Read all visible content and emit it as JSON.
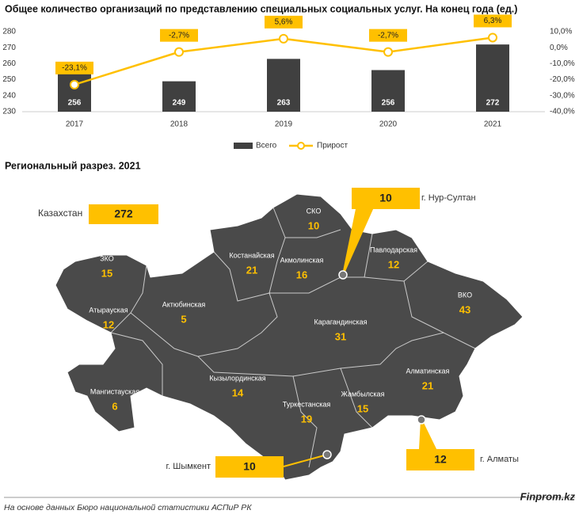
{
  "chart_data": {
    "type": "bar+line",
    "title": "Общее количество организаций по представлению специальных социальных услуг. На конец года (ед.)",
    "categories": [
      "2017",
      "2018",
      "2019",
      "2020",
      "2021"
    ],
    "series": [
      {
        "name": "Всего",
        "type": "bar",
        "color": "#404040",
        "values": [
          256,
          249,
          263,
          256,
          272
        ]
      },
      {
        "name": "Прирост",
        "type": "line",
        "axis": "y2",
        "color": "#ffc000",
        "values": [
          -23.1,
          -2.7,
          5.6,
          -2.7,
          6.3
        ],
        "value_labels": [
          "-23,1%",
          "-2,7%",
          "5,6%",
          "-2,7%",
          "6,3%"
        ]
      }
    ],
    "ylim": [
      230,
      280
    ],
    "yticks": [
      230,
      240,
      250,
      260,
      270,
      280
    ],
    "y2lim": [
      -40,
      10
    ],
    "y2ticks": [
      {
        "value": -40,
        "label": "-40,0%"
      },
      {
        "value": -30,
        "label": "-30,0%"
      },
      {
        "value": -20,
        "label": "-20,0%"
      },
      {
        "value": -10,
        "label": "-10,0%"
      },
      {
        "value": 0,
        "label": "0,0%"
      },
      {
        "value": 10,
        "label": "10,0%"
      }
    ],
    "grid": false,
    "legend": "bottom"
  },
  "map": {
    "title": "Региональный разрез. 2021",
    "total": {
      "label": "Казахстан",
      "value": 272
    },
    "regions": [
      {
        "name": "ЗКО",
        "value": 15
      },
      {
        "name": "Атырауская",
        "value": 12
      },
      {
        "name": "Актюбинская",
        "value": 5
      },
      {
        "name": "Мангистауская",
        "value": 6
      },
      {
        "name": "Кызылординская",
        "value": 14
      },
      {
        "name": "Туркестанская",
        "value": 19
      },
      {
        "name": "Жамбылская",
        "value": 15
      },
      {
        "name": "Алматинская",
        "value": 21
      },
      {
        "name": "Карагандинская",
        "value": 31
      },
      {
        "name": "Костанайская",
        "value": 21
      },
      {
        "name": "Акмолинская",
        "value": 16
      },
      {
        "name": "СКО",
        "value": 10
      },
      {
        "name": "Павлодарская",
        "value": 12
      },
      {
        "name": "ВКО",
        "value": 43
      }
    ],
    "cities": [
      {
        "name": "г. Нур-Султан",
        "value": 10
      },
      {
        "name": "г. Шымкент",
        "value": 10
      },
      {
        "name": "г. Алматы",
        "value": 12
      }
    ]
  },
  "footer": {
    "source": "На основе данных Бюро национальной статистики АСПиР РК",
    "brand": "Finprom.kz"
  }
}
